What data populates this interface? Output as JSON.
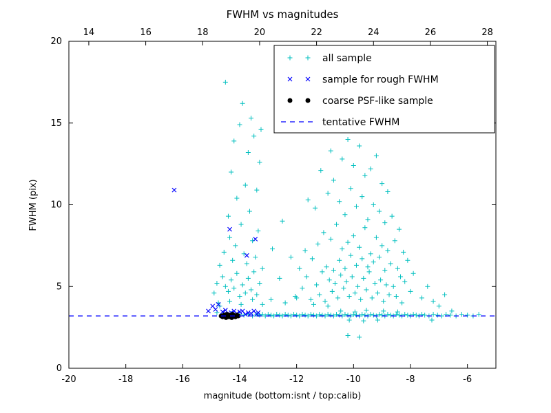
{
  "chart_data": {
    "type": "scatter",
    "title": "FWHM vs magnitudes",
    "xlabel": "magnitude (bottom:isnt / top:calib)",
    "ylabel": "FWHM (pix)",
    "grid": false,
    "legend_position": "upper right",
    "x_axis": {
      "min": -20,
      "max": -5,
      "ticks": [
        -20,
        -18,
        -16,
        -14,
        -12,
        -10,
        -8,
        -6
      ]
    },
    "top_axis": {
      "min": 13.3,
      "max": 28.3,
      "ticks": [
        14,
        16,
        18,
        20,
        22,
        24,
        26,
        28
      ]
    },
    "y_axis": {
      "min": 0,
      "max": 20,
      "ticks": [
        0,
        5,
        10,
        15,
        20
      ]
    },
    "tentative_fwhm": 3.2,
    "colors": {
      "all_sample": "#00bfbf",
      "rough_fwhm": "#0000ff",
      "psf_like": "#000000",
      "tentative_line": "#0000ff"
    },
    "series": [
      {
        "name": "all sample",
        "marker": "plus",
        "color": "#00bfbf",
        "points": [
          [
            -14.8,
            3.4
          ],
          [
            -14.6,
            3.3
          ],
          [
            -14.45,
            3.25
          ],
          [
            -14.3,
            3.35
          ],
          [
            -14.15,
            3.2
          ],
          [
            -14.0,
            3.3
          ],
          [
            -13.85,
            3.25
          ],
          [
            -13.7,
            3.3
          ],
          [
            -13.55,
            3.2
          ],
          [
            -13.4,
            3.3
          ],
          [
            -13.3,
            3.25
          ],
          [
            -13.2,
            3.3
          ],
          [
            -13.1,
            3.2
          ],
          [
            -13.0,
            3.3
          ],
          [
            -12.9,
            3.25
          ],
          [
            -12.8,
            3.2
          ],
          [
            -12.7,
            3.3
          ],
          [
            -12.6,
            3.25
          ],
          [
            -12.5,
            3.2
          ],
          [
            -12.4,
            3.3
          ],
          [
            -12.3,
            3.25
          ],
          [
            -12.2,
            3.2
          ],
          [
            -12.1,
            3.3
          ],
          [
            -12.0,
            3.25
          ],
          [
            -11.9,
            3.2
          ],
          [
            -11.8,
            3.3
          ],
          [
            -11.7,
            3.25
          ],
          [
            -11.6,
            3.2
          ],
          [
            -11.5,
            3.3
          ],
          [
            -11.4,
            3.25
          ],
          [
            -11.3,
            3.2
          ],
          [
            -11.2,
            3.3
          ],
          [
            -11.1,
            3.25
          ],
          [
            -11.0,
            3.2
          ],
          [
            -10.9,
            3.3
          ],
          [
            -10.8,
            3.25
          ],
          [
            -10.7,
            3.2
          ],
          [
            -10.6,
            3.3
          ],
          [
            -10.5,
            3.25
          ],
          [
            -10.4,
            3.2
          ],
          [
            -10.3,
            3.3
          ],
          [
            -10.2,
            3.25
          ],
          [
            -10.1,
            3.2
          ],
          [
            -10.0,
            3.3
          ],
          [
            -9.9,
            3.25
          ],
          [
            -9.8,
            3.2
          ],
          [
            -9.7,
            3.3
          ],
          [
            -9.6,
            3.25
          ],
          [
            -9.5,
            3.2
          ],
          [
            -9.4,
            3.3
          ],
          [
            -9.3,
            3.25
          ],
          [
            -9.2,
            3.2
          ],
          [
            -9.1,
            3.3
          ],
          [
            -9.0,
            3.25
          ],
          [
            -8.9,
            3.2
          ],
          [
            -8.8,
            3.3
          ],
          [
            -8.7,
            3.25
          ],
          [
            -8.6,
            3.2
          ],
          [
            -8.5,
            3.3
          ],
          [
            -8.4,
            3.25
          ],
          [
            -8.3,
            3.2
          ],
          [
            -8.2,
            3.3
          ],
          [
            -8.1,
            3.25
          ],
          [
            -8.0,
            3.2
          ],
          [
            -7.9,
            3.3
          ],
          [
            -7.8,
            3.25
          ],
          [
            -7.7,
            3.2
          ],
          [
            -7.6,
            3.3
          ],
          [
            -7.5,
            3.25
          ],
          [
            -7.35,
            3.2
          ],
          [
            -7.2,
            3.3
          ],
          [
            -7.05,
            3.25
          ],
          [
            -6.9,
            3.2
          ],
          [
            -6.75,
            3.3
          ],
          [
            -6.6,
            3.25
          ],
          [
            -6.4,
            3.2
          ],
          [
            -6.2,
            3.3
          ],
          [
            -6.0,
            3.25
          ],
          [
            -5.8,
            3.2
          ],
          [
            -5.6,
            3.3
          ],
          [
            -10.45,
            3.5
          ],
          [
            -9.95,
            3.45
          ],
          [
            -9.55,
            3.55
          ],
          [
            -8.95,
            3.5
          ],
          [
            -8.45,
            3.45
          ],
          [
            -10.15,
            2.95
          ],
          [
            -9.65,
            2.9
          ],
          [
            -9.15,
            2.95
          ],
          [
            -10.2,
            2.0
          ],
          [
            -9.8,
            1.9
          ],
          [
            -7.25,
            2.95
          ],
          [
            -6.55,
            3.5
          ],
          [
            -14.9,
            4.6
          ],
          [
            -14.8,
            5.2
          ],
          [
            -14.75,
            4.0
          ],
          [
            -14.7,
            6.3
          ],
          [
            -14.6,
            5.6
          ],
          [
            -14.55,
            7.1
          ],
          [
            -14.5,
            17.5
          ],
          [
            -14.5,
            5.0
          ],
          [
            -14.4,
            9.3
          ],
          [
            -14.4,
            4.7
          ],
          [
            -14.35,
            8.0
          ],
          [
            -14.3,
            12.0
          ],
          [
            -14.3,
            5.4
          ],
          [
            -14.25,
            6.6
          ],
          [
            -14.2,
            13.9
          ],
          [
            -14.2,
            4.9
          ],
          [
            -14.15,
            7.5
          ],
          [
            -14.1,
            10.4
          ],
          [
            -14.1,
            5.8
          ],
          [
            -14.0,
            14.9
          ],
          [
            -14.0,
            4.4
          ],
          [
            -13.95,
            8.8
          ],
          [
            -13.9,
            16.2
          ],
          [
            -13.9,
            5.1
          ],
          [
            -13.85,
            7.0
          ],
          [
            -13.8,
            11.2
          ],
          [
            -13.8,
            4.6
          ],
          [
            -13.75,
            6.4
          ],
          [
            -13.7,
            13.2
          ],
          [
            -13.7,
            5.5
          ],
          [
            -13.65,
            9.6
          ],
          [
            -13.6,
            15.3
          ],
          [
            -13.6,
            4.8
          ],
          [
            -13.55,
            7.8
          ],
          [
            -13.5,
            14.2
          ],
          [
            -13.5,
            5.9
          ],
          [
            -13.45,
            6.8
          ],
          [
            -13.4,
            10.9
          ],
          [
            -13.4,
            4.5
          ],
          [
            -13.35,
            8.4
          ],
          [
            -13.3,
            12.6
          ],
          [
            -13.3,
            5.2
          ],
          [
            -13.25,
            14.6
          ],
          [
            -13.2,
            6.1
          ],
          [
            -13.2,
            3.9
          ],
          [
            -14.7,
            3.8
          ],
          [
            -14.35,
            4.1
          ],
          [
            -13.95,
            3.9
          ],
          [
            -13.55,
            4.2
          ],
          [
            -12.9,
            4.2
          ],
          [
            -12.6,
            5.5
          ],
          [
            -12.4,
            4.0
          ],
          [
            -12.2,
            6.8
          ],
          [
            -12.05,
            4.4
          ],
          [
            -12.5,
            9.0
          ],
          [
            -12.85,
            7.3
          ],
          [
            -11.8,
            4.9
          ],
          [
            -11.7,
            7.2
          ],
          [
            -11.65,
            5.6
          ],
          [
            -11.6,
            10.3
          ],
          [
            -11.9,
            6.1
          ],
          [
            -12.0,
            4.3
          ],
          [
            -11.5,
            4.2
          ],
          [
            -11.45,
            6.7
          ],
          [
            -11.4,
            3.9
          ],
          [
            -11.35,
            9.8
          ],
          [
            -11.3,
            5.1
          ],
          [
            -11.25,
            7.6
          ],
          [
            -11.2,
            4.5
          ],
          [
            -11.15,
            12.1
          ],
          [
            -11.1,
            5.9
          ],
          [
            -11.05,
            8.3
          ],
          [
            -11.0,
            4.1
          ],
          [
            -11.0,
            14.6
          ],
          [
            -10.95,
            6.2
          ],
          [
            -10.9,
            3.8
          ],
          [
            -10.9,
            10.7
          ],
          [
            -10.85,
            5.4
          ],
          [
            -10.8,
            7.9
          ],
          [
            -10.8,
            13.3
          ],
          [
            -10.75,
            4.7
          ],
          [
            -10.7,
            6.0
          ],
          [
            -10.7,
            11.5
          ],
          [
            -10.65,
            5.2
          ],
          [
            -10.6,
            8.8
          ],
          [
            -10.6,
            15.1
          ],
          [
            -10.55,
            4.3
          ],
          [
            -10.5,
            6.6
          ],
          [
            -10.5,
            10.2
          ],
          [
            -10.45,
            5.7
          ],
          [
            -10.4,
            7.3
          ],
          [
            -10.4,
            12.8
          ],
          [
            -10.35,
            4.9
          ],
          [
            -10.3,
            6.1
          ],
          [
            -10.3,
            9.4
          ],
          [
            -10.25,
            5.3
          ],
          [
            -10.2,
            7.7
          ],
          [
            -10.2,
            14.0
          ],
          [
            -10.15,
            4.4
          ],
          [
            -10.1,
            6.9
          ],
          [
            -10.1,
            11.0
          ],
          [
            -10.05,
            5.6
          ],
          [
            -10.0,
            8.1
          ],
          [
            -10.0,
            12.4
          ],
          [
            -9.95,
            4.6
          ],
          [
            -9.9,
            6.3
          ],
          [
            -9.9,
            9.9
          ],
          [
            -9.85,
            5.0
          ],
          [
            -9.8,
            7.4
          ],
          [
            -9.8,
            13.6
          ],
          [
            -9.75,
            4.2
          ],
          [
            -9.7,
            6.7
          ],
          [
            -9.7,
            10.5
          ],
          [
            -9.65,
            5.5
          ],
          [
            -9.6,
            8.6
          ],
          [
            -9.6,
            11.8
          ],
          [
            -9.55,
            4.8
          ],
          [
            -9.5,
            6.2
          ],
          [
            -9.5,
            9.1
          ],
          [
            -9.45,
            5.9
          ],
          [
            -9.4,
            7.0
          ],
          [
            -9.4,
            12.2
          ],
          [
            -9.35,
            4.3
          ],
          [
            -9.3,
            6.5
          ],
          [
            -9.3,
            10.0
          ],
          [
            -9.25,
            5.2
          ],
          [
            -9.2,
            8.0
          ],
          [
            -9.2,
            13.0
          ],
          [
            -9.15,
            4.6
          ],
          [
            -9.1,
            6.8
          ],
          [
            -9.1,
            9.6
          ],
          [
            -9.05,
            5.4
          ],
          [
            -9.0,
            7.5
          ],
          [
            -9.0,
            11.3
          ],
          [
            -8.95,
            4.1
          ],
          [
            -8.9,
            6.0
          ],
          [
            -8.9,
            8.9
          ],
          [
            -8.85,
            5.1
          ],
          [
            -8.8,
            7.2
          ],
          [
            -8.8,
            10.8
          ],
          [
            -8.75,
            4.5
          ],
          [
            -8.7,
            6.4
          ],
          [
            -8.65,
            9.3
          ],
          [
            -8.6,
            5.0
          ],
          [
            -8.55,
            7.8
          ],
          [
            -8.5,
            4.4
          ],
          [
            -8.45,
            6.1
          ],
          [
            -8.4,
            8.5
          ],
          [
            -8.35,
            5.6
          ],
          [
            -8.3,
            4.0
          ],
          [
            -8.25,
            7.1
          ],
          [
            -8.2,
            5.3
          ],
          [
            -8.1,
            6.6
          ],
          [
            -8.0,
            4.7
          ],
          [
            -7.9,
            5.8
          ],
          [
            -7.6,
            4.3
          ],
          [
            -7.4,
            5.0
          ],
          [
            -7.2,
            4.1
          ],
          [
            -7.0,
            3.8
          ],
          [
            -6.8,
            4.5
          ]
        ]
      },
      {
        "name": "sample for rough FWHM",
        "marker": "x",
        "color": "#0000ff",
        "points": [
          [
            -16.3,
            10.9
          ],
          [
            -14.35,
            8.5
          ],
          [
            -13.75,
            6.9
          ],
          [
            -13.45,
            7.9
          ],
          [
            -15.1,
            3.5
          ],
          [
            -14.95,
            3.8
          ],
          [
            -14.85,
            3.6
          ],
          [
            -14.75,
            3.9
          ],
          [
            -14.6,
            3.45
          ],
          [
            -14.5,
            3.55
          ],
          [
            -14.45,
            3.3
          ],
          [
            -14.3,
            3.4
          ],
          [
            -14.2,
            3.5
          ],
          [
            -14.1,
            3.35
          ],
          [
            -14.0,
            3.45
          ],
          [
            -13.9,
            3.5
          ],
          [
            -13.8,
            3.3
          ],
          [
            -13.7,
            3.4
          ],
          [
            -13.6,
            3.35
          ],
          [
            -13.5,
            3.5
          ],
          [
            -13.4,
            3.3
          ],
          [
            -13.35,
            3.4
          ]
        ]
      },
      {
        "name": "coarse PSF-like sample",
        "marker": "circle",
        "color": "#000000",
        "points": [
          [
            -14.65,
            3.2
          ],
          [
            -14.6,
            3.15
          ],
          [
            -14.55,
            3.25
          ],
          [
            -14.5,
            3.2
          ],
          [
            -14.48,
            3.1
          ],
          [
            -14.45,
            3.3
          ],
          [
            -14.4,
            3.2
          ],
          [
            -14.38,
            3.15
          ],
          [
            -14.35,
            3.25
          ],
          [
            -14.3,
            3.2
          ],
          [
            -14.28,
            3.1
          ],
          [
            -14.25,
            3.3
          ],
          [
            -14.2,
            3.2
          ],
          [
            -14.15,
            3.15
          ],
          [
            -14.1,
            3.25
          ],
          [
            -14.05,
            3.2
          ]
        ]
      },
      {
        "name": "tentative FWHM",
        "marker": "dashed-line",
        "color": "#0000ff",
        "y": 3.2
      }
    ]
  }
}
